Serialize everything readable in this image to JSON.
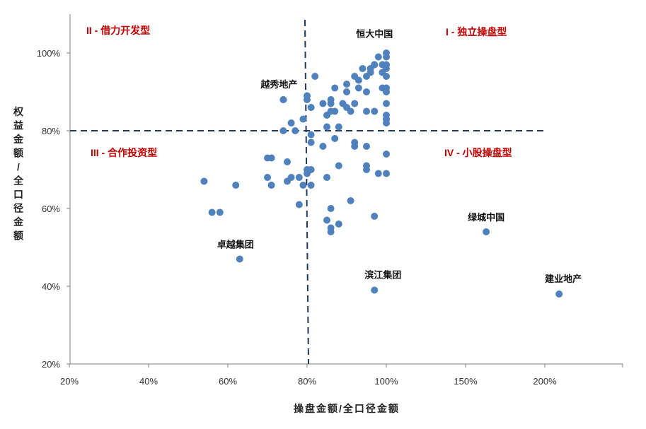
{
  "chart_data": {
    "type": "scatter",
    "title": "",
    "xlabel": "操盘金额/全口径金额",
    "ylabel": "权益金额/全口径金额",
    "x_tick_labels": [
      "20%",
      "40%",
      "60%",
      "80%",
      "100%",
      "150%",
      "200%"
    ],
    "y_tick_labels": [
      "20%",
      "40%",
      "60%",
      "80%",
      "100%"
    ],
    "x_ticks": [
      20,
      40,
      60,
      80,
      100,
      150,
      200
    ],
    "ylim": [
      20,
      100
    ],
    "y_ticks": [
      20,
      40,
      60,
      80,
      100
    ],
    "threshold_x": 80,
    "threshold_y": 80,
    "grid": false,
    "point_color": "#4f81bd",
    "threshold_color": "#1f3a5f",
    "quadrant_color": "#c00000",
    "quadrants": [
      {
        "label": "II - 借力开发型",
        "position": "top-left"
      },
      {
        "label": "I - 独立操盘型",
        "position": "top-right"
      },
      {
        "label": "III - 合作投资型",
        "position": "bottom-left"
      },
      {
        "label": "IV - 小股操盘型",
        "position": "bottom-right"
      }
    ],
    "labeled_points": [
      {
        "label": "恒大中国",
        "x": 97,
        "y": 97
      },
      {
        "label": "越秀地产",
        "x": 74,
        "y": 88
      },
      {
        "label": "绿城中国",
        "x": 163,
        "y": 54
      },
      {
        "label": "卓越集团",
        "x": 63,
        "y": 47
      },
      {
        "label": "滨江集团",
        "x": 97,
        "y": 39
      },
      {
        "label": "建业地产",
        "x": 209,
        "y": 38
      }
    ],
    "points": [
      [
        100,
        100
      ],
      [
        100,
        99
      ],
      [
        98,
        99
      ],
      [
        99,
        97
      ],
      [
        97,
        97
      ],
      [
        100,
        97
      ],
      [
        96,
        96
      ],
      [
        94,
        96
      ],
      [
        100,
        96
      ],
      [
        99,
        95
      ],
      [
        96,
        95
      ],
      [
        95,
        94
      ],
      [
        100,
        94
      ],
      [
        82,
        94
      ],
      [
        92,
        94
      ],
      [
        93,
        93
      ],
      [
        99,
        91
      ],
      [
        100,
        91
      ],
      [
        100,
        90
      ],
      [
        87,
        91
      ],
      [
        90,
        92
      ],
      [
        93,
        91
      ],
      [
        95,
        90
      ],
      [
        90,
        90
      ],
      [
        74,
        88
      ],
      [
        80,
        89
      ],
      [
        80,
        88
      ],
      [
        86,
        88
      ],
      [
        84,
        87
      ],
      [
        86,
        87
      ],
      [
        89,
        87
      ],
      [
        92,
        87
      ],
      [
        100,
        87
      ],
      [
        81,
        86
      ],
      [
        90,
        86
      ],
      [
        86,
        85
      ],
      [
        85,
        84
      ],
      [
        87,
        85
      ],
      [
        91,
        85
      ],
      [
        95,
        85
      ],
      [
        97,
        85
      ],
      [
        100,
        84
      ],
      [
        100,
        83
      ],
      [
        100,
        82
      ],
      [
        79,
        83
      ],
      [
        76,
        82
      ],
      [
        88,
        81
      ],
      [
        85,
        81
      ],
      [
        77,
        80
      ],
      [
        81,
        79
      ],
      [
        74,
        80
      ],
      [
        87,
        78
      ],
      [
        81,
        77
      ],
      [
        84,
        76
      ],
      [
        92,
        77
      ],
      [
        92,
        76
      ],
      [
        95,
        76
      ],
      [
        100,
        74
      ],
      [
        70,
        73
      ],
      [
        71,
        73
      ],
      [
        75,
        72
      ],
      [
        88,
        71
      ],
      [
        95,
        71
      ],
      [
        95,
        70
      ],
      [
        98,
        69
      ],
      [
        100,
        69
      ],
      [
        80,
        70
      ],
      [
        81,
        70
      ],
      [
        80,
        69
      ],
      [
        70,
        68
      ],
      [
        76,
        68
      ],
      [
        78,
        68
      ],
      [
        85,
        68
      ],
      [
        75,
        67
      ],
      [
        54,
        67
      ],
      [
        62,
        66
      ],
      [
        71,
        66
      ],
      [
        79,
        66
      ],
      [
        81,
        66
      ],
      [
        78,
        61
      ],
      [
        86,
        60
      ],
      [
        91,
        62
      ],
      [
        56,
        59
      ],
      [
        58,
        59
      ],
      [
        97,
        58
      ],
      [
        85,
        57
      ],
      [
        88,
        56
      ],
      [
        86,
        55
      ],
      [
        86,
        54
      ]
    ]
  }
}
